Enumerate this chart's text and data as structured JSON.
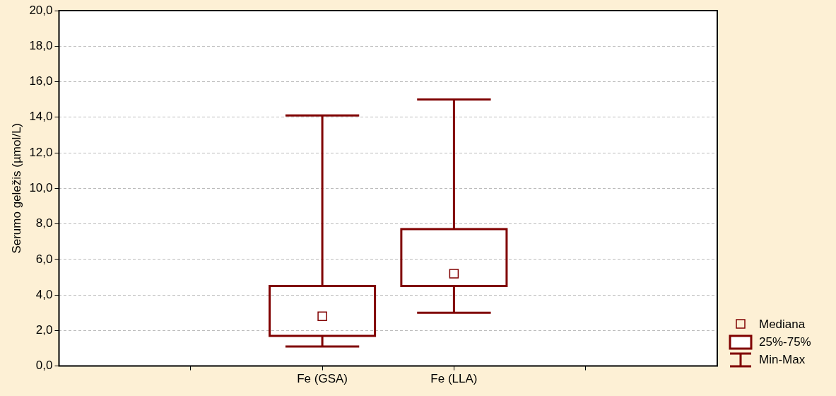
{
  "chart_data": {
    "type": "box",
    "ylabel": "Serumo geležis (µmol/L)",
    "categories": [
      null,
      "Fe (GSA)",
      "Fe (LLA)",
      null
    ],
    "series": [
      {
        "color": "#800000",
        "boxes": [
          null,
          {
            "low": 1.1,
            "q1": 1.7,
            "median": 2.8,
            "q3": 4.5,
            "high": 14.1
          },
          {
            "low": 3.0,
            "q1": 4.5,
            "median": 5.2,
            "q3": 7.7,
            "high": 15.0
          },
          null
        ]
      }
    ],
    "ylim": [
      0,
      20
    ],
    "yticks": [
      {
        "value": 0,
        "label": "0,0"
      },
      {
        "value": 2,
        "label": "2,0"
      },
      {
        "value": 4,
        "label": "4,0"
      },
      {
        "value": 6,
        "label": "6,0"
      },
      {
        "value": 8,
        "label": "8,0"
      },
      {
        "value": 10,
        "label": "10,0"
      },
      {
        "value": 12,
        "label": "12,0"
      },
      {
        "value": 14,
        "label": "14,0"
      },
      {
        "value": 16,
        "label": "16,0"
      },
      {
        "value": 18,
        "label": "18,0"
      },
      {
        "value": 20,
        "label": "20,0"
      }
    ],
    "grid": "y",
    "annotations": [
      "Mediana",
      "25%-75%",
      "Min-Max"
    ]
  }
}
